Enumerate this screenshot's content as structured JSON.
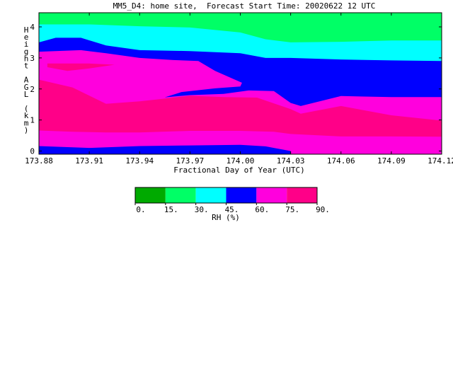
{
  "chart_data": {
    "type": "contour",
    "title": "MM5_D4: home site,  Forecast Start Time: 20020622 12 UTC",
    "xlabel": "Fractional Day of Year (UTC)",
    "ylabel_letters": [
      "H",
      "e",
      "i",
      "g",
      "h",
      "t",
      "",
      "A",
      "G",
      "L",
      "",
      "(",
      "k",
      "m",
      ")"
    ],
    "x_ticks": [
      "173.88",
      "173.91",
      "173.94",
      "173.97",
      "174.00",
      "174.03",
      "174.06",
      "174.09",
      "174.12"
    ],
    "y_ticks": [
      "0",
      "1",
      "2",
      "3",
      "4"
    ],
    "xlim": [
      173.88,
      174.12
    ],
    "ylim": [
      0,
      4.5
    ],
    "colorbar": {
      "label": "RH (%)",
      "tick_labels": [
        "0.",
        "15.",
        "30.",
        "45.",
        "60.",
        "75.",
        "90."
      ],
      "levels": [
        0,
        15,
        30,
        45,
        60,
        75,
        90
      ],
      "colors": [
        "#00aa00",
        "#00ff66",
        "#00ffff",
        "#0000ff",
        "#ff00dd",
        "#ff0088"
      ]
    },
    "bands": [
      {
        "range": "0-15",
        "color": "#00aa00",
        "top": []
      },
      {
        "range": "15-30",
        "color": "#00ff66",
        "top": [
          [
            173.88,
            4.5
          ],
          [
            174.12,
            4.5
          ]
        ]
      },
      {
        "range": "30-45",
        "color": "#00ffff",
        "top": [
          [
            173.88,
            4.08
          ],
          [
            173.91,
            4.08
          ],
          [
            173.94,
            4.02
          ],
          [
            173.97,
            3.98
          ],
          [
            174.0,
            3.82
          ],
          [
            174.015,
            3.6
          ],
          [
            174.03,
            3.5
          ],
          [
            174.06,
            3.52
          ],
          [
            174.09,
            3.56
          ],
          [
            174.12,
            3.56
          ]
        ]
      },
      {
        "range": "45-60",
        "color": "#0000ff",
        "top": [
          [
            173.88,
            3.5
          ],
          [
            173.89,
            3.65
          ],
          [
            173.905,
            3.65
          ],
          [
            173.92,
            3.4
          ],
          [
            173.94,
            3.25
          ],
          [
            173.97,
            3.22
          ],
          [
            174.0,
            3.15
          ],
          [
            174.015,
            3.0
          ],
          [
            174.03,
            3.0
          ],
          [
            174.06,
            2.95
          ],
          [
            174.09,
            2.92
          ],
          [
            174.12,
            2.9
          ]
        ]
      },
      {
        "range": "60-75",
        "color": "#ff00dd",
        "top": [
          [
            173.88,
            3.2
          ],
          [
            173.905,
            3.25
          ],
          [
            173.92,
            3.15
          ],
          [
            173.94,
            3.0
          ],
          [
            173.96,
            2.93
          ],
          [
            173.975,
            2.9
          ],
          [
            173.985,
            2.58
          ],
          [
            174.001,
            2.2
          ],
          [
            174.0,
            2.08
          ],
          [
            173.985,
            2.02
          ],
          [
            173.965,
            1.9
          ],
          [
            173.955,
            1.73
          ],
          [
            173.97,
            1.8
          ],
          [
            173.99,
            1.84
          ],
          [
            174.005,
            1.95
          ],
          [
            174.02,
            1.93
          ],
          [
            174.03,
            1.55
          ],
          [
            174.036,
            1.45
          ],
          [
            174.06,
            1.77
          ],
          [
            174.09,
            1.74
          ],
          [
            174.12,
            1.74
          ]
        ]
      },
      {
        "range": "75-90",
        "color": "#ff0088",
        "top": [
          [
            173.88,
            2.3
          ],
          [
            173.9,
            2.05
          ],
          [
            173.92,
            1.52
          ],
          [
            173.94,
            1.6
          ],
          [
            173.955,
            1.69
          ],
          [
            173.97,
            1.78
          ],
          [
            173.99,
            1.74
          ],
          [
            174.01,
            1.72
          ],
          [
            174.03,
            1.35
          ],
          [
            174.036,
            1.2
          ],
          [
            174.06,
            1.45
          ],
          [
            174.09,
            1.15
          ],
          [
            174.12,
            0.98
          ]
        ]
      },
      {
        "range": "60-75",
        "color": "#ff00dd",
        "top": [
          [
            173.88,
            0.66
          ],
          [
            173.9,
            0.62
          ],
          [
            173.92,
            0.6
          ],
          [
            173.94,
            0.6
          ],
          [
            173.97,
            0.65
          ],
          [
            174.0,
            0.65
          ],
          [
            174.02,
            0.62
          ],
          [
            174.03,
            0.55
          ],
          [
            174.06,
            0.47
          ],
          [
            174.09,
            0.47
          ],
          [
            174.12,
            0.46
          ]
        ]
      },
      {
        "range": "45-60",
        "color": "#0000ff",
        "top": [
          [
            173.88,
            0.16
          ],
          [
            173.91,
            0.1
          ],
          [
            173.94,
            0.16
          ],
          [
            173.97,
            0.18
          ],
          [
            174.0,
            0.2
          ],
          [
            174.015,
            0.15
          ],
          [
            174.03,
            0.0
          ]
        ]
      }
    ],
    "islands": [
      {
        "range": "75-90",
        "color": "#ff0088",
        "points": [
          [
            173.885,
            2.82
          ],
          [
            173.91,
            2.82
          ],
          [
            173.925,
            2.78
          ],
          [
            173.91,
            2.66
          ],
          [
            173.897,
            2.58
          ],
          [
            173.885,
            2.7
          ]
        ]
      }
    ]
  }
}
